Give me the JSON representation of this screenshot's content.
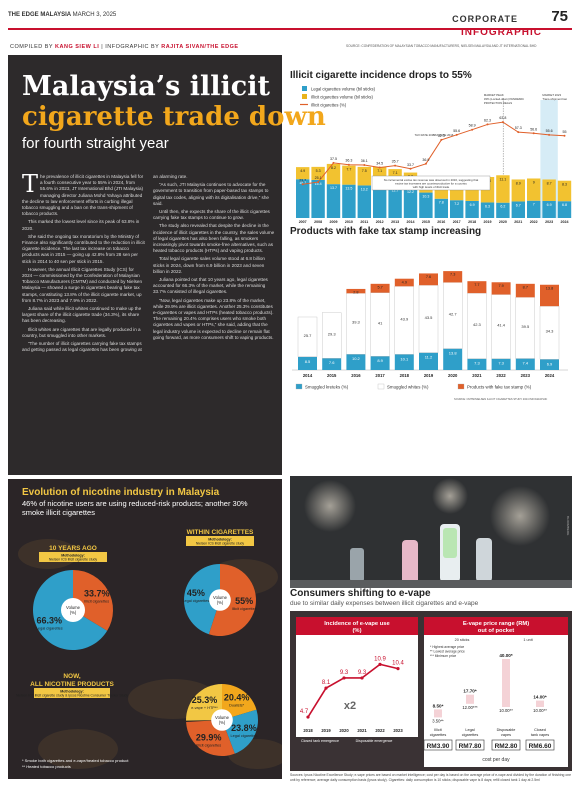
{
  "header": {
    "logo": "THE EDGE MALAYSIA",
    "date": "MARCH 3, 2025",
    "section": "CORPORATE",
    "page_number": "75",
    "infographic_label": "INFOGRAPHIC",
    "compiled_by_label": "COMPILED BY",
    "compiled_by": "KANG SIEW LI",
    "infographic_by_label": "INFOGRAPHIC BY",
    "infographic_by": "RAJITA SIVAN/THE EDGE",
    "sources": "SOURCE: CONFEDERATION OF MALAYSIAN TOBACCO MANUFACTURERS, NIELSEN MALAYSIA AND JT INTERNATIONAL BHD"
  },
  "article": {
    "headline_line1": "Malaysia’s illicit",
    "headline_line2": "cigarette trade down",
    "headline_line3": "for fourth straight year",
    "dropcap": "T",
    "paragraphs": [
      "he prevalence of illicit cigarettes in Malaysia fell for a fourth consecutive year to 55% in 2024, from 55.6% in 2023, JT International Bhd (JTI Malaysia) managing director Juliana Mohd Yahaya attributed the decline to law enforcement efforts in curbing illegal tobacco smuggling and a ban on the trans-shipment of tobacco products.",
      "This marked the lowest level since its peak of 63.8% in 2020.",
      "She said the ongoing tax moratorium by the Ministry of Finance also significantly contributed to the reduction in illicit cigarette incidence. The last tax increase on tobacco products was in 2015 — going up 42.8% from 28 sen per stick in 2014 to 40 sen per stick in 2015.",
      "However, the annual Illicit Cigarettes Study (ICS) for 2024 — commissioned by the Confederation of Malaysian Tobacco Manufacturers (CMTM) and conducted by Nielsen Malaysia — showed a surge in cigarettes bearing fake tax stamps, constituting 13.8% of the illicit cigarette market, up from 8.7% in 2023 and 7.9% in 2022.",
      "Juliana said while illicit whites continued to make up the largest share of the illicit cigarette trade (34.3%), its share has been decreasing.",
      "Illicit whites are cigarettes that are legally produced in a country, but smuggled into other markets.",
      "“The number of illicit cigarettes carrying fake tax stamps and getting passed as legal cigarettes has been growing at an alarming rate.",
      "“As such, JTI Malaysia continues to advocate for the government to transition from paper-based tax stamps to digital tax codes, aligning with its digitalisation drive,” she said.",
      "Until then, she expects the share of the illicit cigarettes carrying fake tax stamps to continue to grow.",
      "The study also revealed that despite the decline in the incidence of illicit cigarettes in the country, the sales volume of legal cigarettes has also been falling, as smokers increasingly pivot towards smoke-free alternatives, such as heated tobacco products (HTPs) and vaping products.",
      "Total legal cigarette sales volume stood at 6.8 billion sticks in 2024, down from 6.9 billion in 2023 and seven billion in 2022.",
      "Juliana pointed out that 10 years ago, legal cigarettes accounted for 66.3% of the market, while the remaining 33.7% consisted of illegal cigarettes.",
      "“Now, legal cigarettes make up 23.8% of the market, while 29.9% are illicit cigarettes. Another 25.3% constitutes e-cigarettes or vapes and HTPs (heated tobacco products). The remaining 20.4% comprises users who smoke both cigarettes and vapes or HTPs,” she said, adding that the legal industry volume is expected to decline or remain flat going forward, as more consumers shift to vaping products."
    ]
  },
  "chart1": {
    "title": "Illicit cigarette incidence drops to 55%",
    "legend": [
      "Legal cigarettes volume (bil sticks)",
      "Illicit cigarettes volume (bil sticks)",
      "Illicit cigarettes (%)"
    ],
    "annotation1": "MARKET PEAK 33% (Locked-down) PANDEMIC PROTECTION DEALS",
    "annotation2": "MARKET 2023 Trans-shipment ban",
    "annotation_box": "No incremental excise tax revenue was observed in 2016, suggesting that excise tax increases are counterproductive for a country with high levels of illicit trade",
    "tag1": "TAX RATE 2015",
    "tag2": "TAX RATE 2016",
    "source": "SOURCE: CMTM/NIELSEN ILLICIT CIGARETTES STUDY 2024 INFOGRAPHIC"
  },
  "chart2": {
    "title": "Products with fake tax stamp increasing",
    "legend": [
      "Smuggled kreteks (%)",
      "Smuggled whites (%)",
      "Products with fake tax stamp (%)"
    ],
    "source": "SOURCE: CMTM/NIELSEN ILLICIT CIGARETTES STUDY 2024 INFOGRAPHIC"
  },
  "nicotine": {
    "title": "Evolution of nicotine industry in Malaysia",
    "subtitle": "46% of nicotine users are using reduced-risk products; another 30% smoke illicit cigarettes",
    "ten_years": {
      "label": "10 YEARS AGO",
      "methodology": "Methodology: Nielsen ICS illicit cigarette study",
      "center": "Volume (%)",
      "slices": [
        {
          "value": "66.3%",
          "label": "Legal cigarettes",
          "pct": 66.3
        },
        {
          "value": "33.7%",
          "label": "Illicit cigarettes",
          "pct": 33.7
        }
      ]
    },
    "now_cig": {
      "label": "NOW, WITHIN CIGARETTES",
      "methodology": "Methodology: Nielsen ICS illicit cigarette study",
      "center": "Volume (%)",
      "slices": [
        {
          "value": "45%",
          "label": "Legal cigarettes",
          "pct": 45
        },
        {
          "value": "55%",
          "label": "Illicit cigarettes",
          "pct": 55
        }
      ]
    },
    "now_all": {
      "label": "NOW, ALL NICOTINE PRODUCTS",
      "methodology": "Methodology: Nielsen ICS illicit cigarette study & Ipsos Nicotine Consumer Tracker Study",
      "center": "Volume (%)",
      "slices": [
        {
          "value": "25.3%",
          "label": "e-vape + HTP**",
          "pct": 25.3
        },
        {
          "value": "20.4%",
          "label": "Dualists*",
          "pct": 20.4
        },
        {
          "value": "23.8%",
          "label": "Legal cigarettes",
          "pct": 23.8
        },
        {
          "value": "29.9%",
          "label": "Illicit cigarettes",
          "pct": 29.9
        }
      ]
    },
    "footnote1": "* Smoke both cigarettes and e-vape/heated tobacco product",
    "footnote2": "** Heated tobacco products"
  },
  "vape": {
    "title": "Consumers shifting to e-vape",
    "subtitle": "due to similar daily expenses between illicit cigarettes and e-vape",
    "photo_credit": "BLOOMBERG",
    "incidence": {
      "title": "Incidence of e-vape use (%)",
      "multiplier": "x2",
      "label_closed": "Closed tank emergence",
      "label_disposable": "Disposable emergence"
    },
    "price": {
      "title": "E-vape price range (RM) out of pocket",
      "legend_highest": "* Highest average price",
      "legend_lowest": "** Lowest average price",
      "legend_min": "*** Minimum price",
      "units": [
        "20 sticks",
        "1 unit"
      ],
      "categories": [
        "Illicit cigarettes",
        "Legal cigarettes",
        "Disposable vapes",
        "Closed tank vapes"
      ],
      "top_values": [
        "8.50*",
        "17.70*",
        "40.00*",
        "14.00*"
      ],
      "bottom_values": [
        "3.50**",
        "12.00***",
        "10.00**",
        "10.00**"
      ],
      "cost_per_day": [
        "RM3.90",
        "RM7.80",
        "RM2.80",
        "RM6.60"
      ],
      "cost_label": "cost per day"
    },
    "bottom_source": "Sources: Ipsos Nicotine Excellence Study; e-vape prices are based on market intelligence; cost per day is based on the average price of e-vape and divided by the duration of finishing one unit by reference; average daily consumption basis (Ipsos study). Cigarettes: daily consumption is 10 sticks; disposable vape is 8 days; refill closed tank 1 day at 2.5ml"
  },
  "chart_data": [
    {
      "type": "bar",
      "title": "Illicit cigarette incidence drops to 55%",
      "categories": [
        "2007",
        "2008",
        "2009",
        "2010",
        "2011",
        "2012",
        "2013",
        "2014",
        "2015",
        "2016",
        "2017",
        "2018",
        "2019",
        "2020",
        "2021",
        "2022",
        "2023",
        "2024"
      ],
      "series": [
        {
          "name": "Legal cigarettes volume (bil sticks)",
          "values": [
            15.7,
            15.4,
            13.7,
            13.5,
            13.2,
            13.6,
            12.7,
            12.2,
            10.3,
            7.8,
            7.2,
            6.9,
            6.3,
            6.2,
            6.7,
            7.0,
            6.9,
            6.8
          ]
        },
        {
          "name": "Illicit cigarettes volume (bil sticks)",
          "values": [
            4.9,
            5.3,
            8.2,
            7.7,
            7.5,
            7.1,
            7.1,
            6.2,
            6.2,
            8.8,
            9.0,
            9.9,
            10.3,
            11.1,
            8.9,
            9.0,
            8.7,
            8.3
          ]
        },
        {
          "name": "Illicit cigarettes (%)",
          "type": "line",
          "values": [
            23.7,
            25.1,
            37.5,
            36.3,
            36.1,
            34.5,
            35.7,
            33.7,
            36.9,
            52.3,
            55.6,
            58.9,
            62.3,
            63.8,
            57.3,
            56.6,
            55.6,
            55.0
          ]
        }
      ]
    },
    {
      "type": "bar",
      "title": "Products with fake tax stamp increasing",
      "categories": [
        "2014",
        "2015",
        "2016",
        "2017",
        "2018",
        "2019",
        "2020",
        "2021",
        "2022",
        "2023",
        "2024"
      ],
      "series": [
        {
          "name": "Smuggled kreteks (%)",
          "values": [
            8.5,
            7.6,
            10.2,
            8.9,
            10.1,
            11.2,
            13.8,
            7.3,
            7.3,
            7.4,
            6.9
          ]
        },
        {
          "name": "Smuggled whites (%)",
          "values": [
            25.7,
            29.3,
            39.3,
            41.0,
            43.9,
            43.5,
            42.7,
            42.3,
            41.4,
            39.5,
            34.3
          ]
        },
        {
          "name": "Products with fake tax stamp (%)",
          "values": [
            null,
            null,
            2.8,
            5.7,
            4.9,
            7.6,
            7.3,
            7.7,
            7.9,
            8.7,
            13.8
          ]
        }
      ]
    },
    {
      "type": "line",
      "title": "Incidence of e-vape use (%)",
      "categories": [
        "2018",
        "2019",
        "2020",
        "2021",
        "2022",
        "2023"
      ],
      "values": [
        4.7,
        8.1,
        9.3,
        9.3,
        10.9,
        10.4
      ]
    }
  ]
}
